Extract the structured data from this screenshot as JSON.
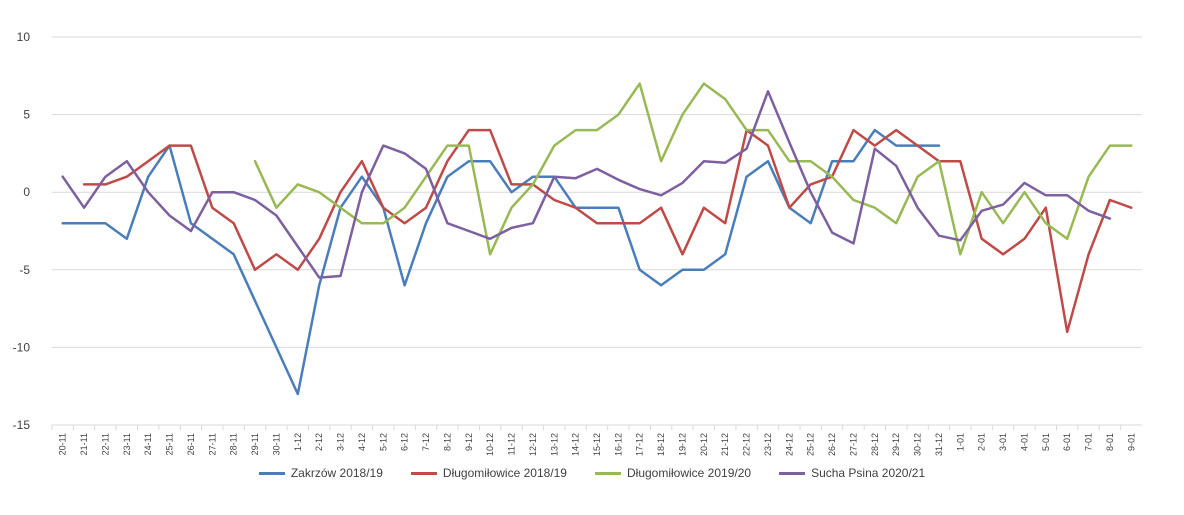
{
  "chart_data": {
    "type": "line",
    "title": "",
    "xlabel": "",
    "ylabel": "",
    "ylim": [
      -15,
      10
    ],
    "yticks": [
      -15,
      -10,
      -5,
      0,
      5,
      10
    ],
    "grid": true,
    "legend_position": "bottom",
    "categories": [
      "20-11",
      "21-11",
      "22-11",
      "23-11",
      "24-11",
      "25-11",
      "26-11",
      "27-11",
      "28-11",
      "29-11",
      "30-11",
      "1-12",
      "2-12",
      "3-12",
      "4-12",
      "5-12",
      "6-12",
      "7-12",
      "8-12",
      "9-12",
      "10-12",
      "11-12",
      "12-12",
      "13-12",
      "14-12",
      "15-12",
      "16-12",
      "17-12",
      "18-12",
      "19-12",
      "20-12",
      "21-12",
      "22-12",
      "23-12",
      "24-12",
      "25-12",
      "26-12",
      "27-12",
      "28-12",
      "29-12",
      "30-12",
      "31-12",
      "1-01",
      "2-01",
      "3-01",
      "4-01",
      "5-01",
      "6-01",
      "7-01",
      "8-01",
      "9-01"
    ],
    "series": [
      {
        "name": "Zakrzów 2018/19",
        "color": "#4a7ebb",
        "values": [
          -2,
          -2,
          -2,
          -3,
          1,
          3,
          -2,
          -3,
          -4,
          -7,
          -10,
          -13,
          -6,
          -1,
          1,
          -1,
          -6,
          -2,
          1,
          2,
          2,
          0,
          1,
          1,
          -1,
          -1,
          -1,
          -5,
          -6,
          -5,
          -5,
          -4,
          1,
          2,
          -1,
          -2,
          2,
          2,
          4,
          3,
          3,
          3,
          null,
          null,
          null,
          null,
          null,
          null,
          null,
          null,
          null
        ]
      },
      {
        "name": "Długomiłowice 2018/19",
        "color": "#be4b48",
        "values": [
          null,
          0.5,
          0.5,
          1,
          2,
          3,
          3,
          -1,
          -2,
          -5,
          -4,
          -5,
          -3,
          0,
          2,
          -1,
          -2,
          -1,
          2,
          4,
          4,
          0.5,
          0.5,
          -0.5,
          -1,
          -2,
          -2,
          -2,
          -1,
          -4,
          -1,
          -2,
          4,
          3,
          -1,
          0.5,
          1,
          4,
          3,
          4,
          3,
          2,
          2,
          -3,
          -4,
          -3,
          -1,
          -9,
          -4,
          -0.5,
          -1
        ]
      },
      {
        "name": "Długomiłowice 2019/20",
        "color": "#98b954",
        "values": [
          null,
          null,
          null,
          null,
          null,
          null,
          null,
          null,
          null,
          2,
          -1,
          0.5,
          0,
          -1,
          -2,
          -2,
          -1,
          1,
          3,
          3,
          -4,
          -1,
          0.5,
          3,
          4,
          4,
          5,
          7,
          2,
          5,
          7,
          6,
          4,
          4,
          2,
          2,
          1,
          -0.5,
          -1,
          -2,
          1,
          2,
          -4,
          0,
          -2,
          0,
          -2,
          -3,
          1,
          3,
          3
        ]
      },
      {
        "name": "Sucha Psina 2020/21",
        "color": "#7d60a0",
        "values": [
          1,
          -1,
          1,
          2,
          0,
          -1.5,
          -2.5,
          0,
          0,
          -0.5,
          -1.5,
          -3.5,
          -5.5,
          -5.4,
          0,
          3,
          2.5,
          1.5,
          -2,
          -2.5,
          -3,
          -2.3,
          -2,
          1,
          0.9,
          1.5,
          0.8,
          0.2,
          -0.2,
          0.6,
          2,
          1.9,
          2.8,
          6.5,
          3.2,
          0,
          -2.6,
          -3.3,
          2.8,
          1.7,
          -1,
          -2.8,
          -3.1,
          -1.2,
          -0.8,
          0.6,
          -0.2,
          -0.2,
          -1.2,
          -1.7,
          null
        ]
      }
    ]
  }
}
